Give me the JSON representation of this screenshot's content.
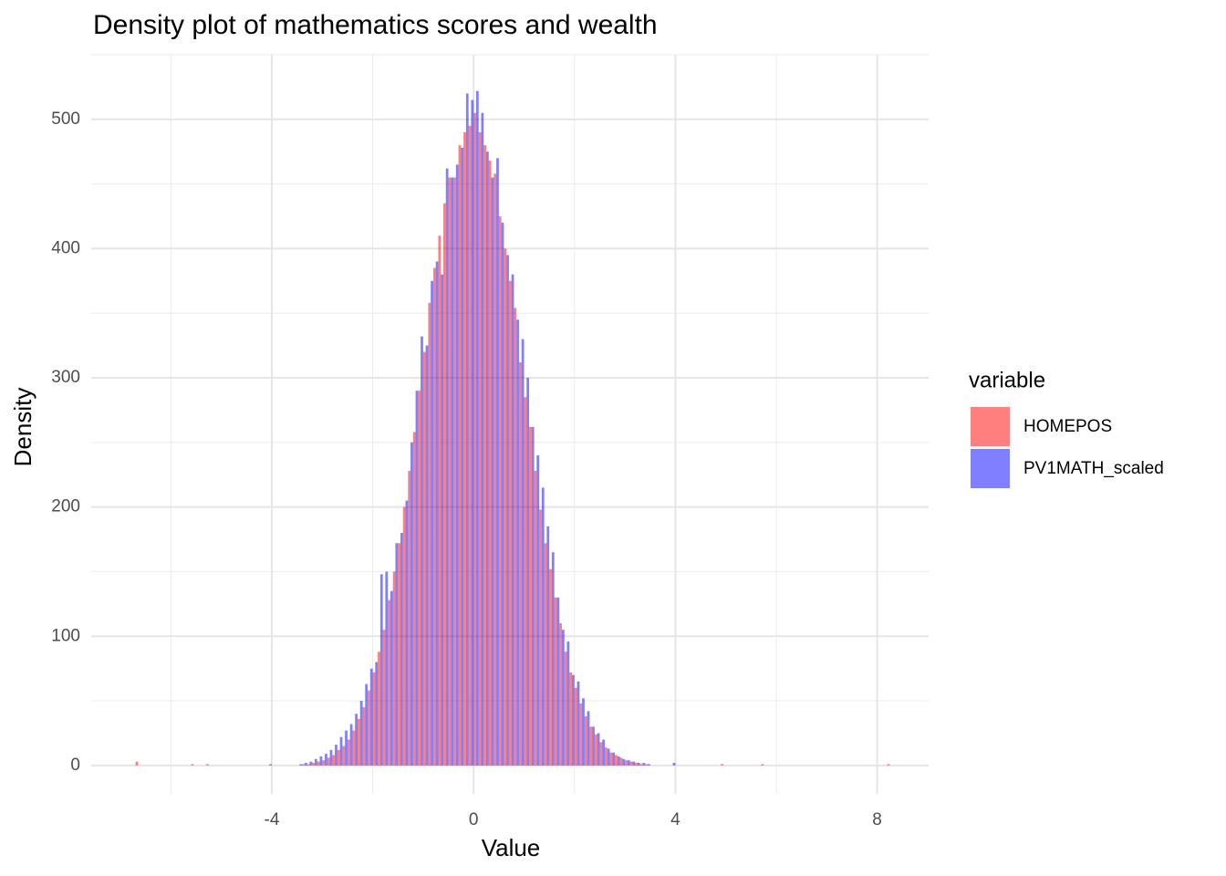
{
  "chart_data": {
    "type": "histogram",
    "title": "Density plot of mathematics scores and wealth",
    "x_label": "Value",
    "y_label": "Density",
    "legend_title": "variable",
    "legend_position": "right",
    "grid": true,
    "alpha": 0.5,
    "position": "dodge",
    "bins": [
      -7.0,
      -6.9,
      -6.8,
      -6.7,
      -6.6,
      -6.5,
      -6.4,
      -6.3,
      -6.2,
      -6.1,
      -6.0,
      -5.9,
      -5.8,
      -5.7,
      -5.6,
      -5.5,
      -5.4,
      -5.3,
      -5.2,
      -5.1,
      -5.0,
      -4.9,
      -4.8,
      -4.7,
      -4.6,
      -4.5,
      -4.4,
      -4.3,
      -4.2,
      -4.1,
      -4.0,
      -3.9,
      -3.8,
      -3.7,
      -3.6,
      -3.5,
      -3.4,
      -3.3,
      -3.2,
      -3.1,
      -3.0,
      -2.9,
      -2.8,
      -2.7,
      -2.6,
      -2.5,
      -2.4,
      -2.3,
      -2.2,
      -2.1,
      -2.0,
      -1.9,
      -1.8,
      -1.7,
      -1.6,
      -1.5,
      -1.4,
      -1.3,
      -1.2,
      -1.1,
      -1.0,
      -0.9,
      -0.8,
      -0.7,
      -0.6,
      -0.5,
      -0.4,
      -0.3,
      -0.2,
      -0.1,
      0.0,
      0.1,
      0.2,
      0.3,
      0.4,
      0.5,
      0.6,
      0.7,
      0.8,
      0.9,
      1.0,
      1.1,
      1.2,
      1.3,
      1.4,
      1.5,
      1.6,
      1.7,
      1.8,
      1.9,
      2.0,
      2.1,
      2.2,
      2.3,
      2.4,
      2.5,
      2.6,
      2.7,
      2.8,
      2.9,
      3.0,
      3.1,
      3.2,
      3.3,
      3.4,
      3.5,
      3.6,
      3.7,
      3.8,
      3.9,
      4.0,
      4.1,
      4.2,
      4.3,
      4.4,
      4.5,
      4.6,
      4.7,
      4.8,
      4.9,
      5.0,
      5.1,
      5.2,
      5.3,
      5.4,
      5.5,
      5.6,
      5.7,
      5.8,
      5.9,
      6.0,
      6.1,
      6.2,
      6.3,
      6.4,
      6.5,
      6.6,
      6.7,
      6.8,
      6.9,
      7.0,
      7.1,
      7.2,
      7.3,
      7.4,
      7.5,
      7.6,
      7.7,
      7.8,
      7.9,
      8.0,
      8.1,
      8.2,
      8.3,
      8.4,
      8.5
    ],
    "series": [
      {
        "name": "HOMEPOS",
        "color": "#ff0000",
        "values": [
          0,
          0,
          0,
          3,
          0,
          0,
          0,
          0,
          0,
          0,
          0,
          0,
          0,
          0,
          1,
          0,
          0,
          1,
          0,
          0,
          0,
          0,
          0,
          0,
          0,
          0,
          0,
          0,
          0,
          0,
          0,
          0,
          0,
          0,
          0,
          0,
          1,
          1,
          2,
          3,
          4,
          6,
          8,
          12,
          15,
          20,
          27,
          36,
          45,
          58,
          72,
          88,
          105,
          128,
          150,
          172,
          200,
          228,
          258,
          290,
          320,
          358,
          385,
          410,
          435,
          455,
          455,
          480,
          490,
          495,
          505,
          490,
          480,
          468,
          458,
          425,
          400,
          375,
          354,
          312,
          285,
          262,
          228,
          198,
          172,
          152,
          130,
          110,
          88,
          72,
          60,
          48,
          38,
          30,
          24,
          18,
          14,
          10,
          8,
          6,
          4,
          3,
          2,
          1,
          1,
          0,
          0,
          0,
          0,
          0,
          0,
          0,
          0,
          0,
          0,
          0,
          0,
          0,
          0,
          1,
          0,
          0,
          0,
          0,
          0,
          0,
          0,
          1,
          0,
          0,
          0,
          0,
          0,
          0,
          0,
          0,
          0,
          0,
          0,
          0,
          0,
          0,
          0,
          0,
          0,
          0,
          0,
          0,
          0,
          0,
          0,
          0,
          1,
          0,
          0
        ]
      },
      {
        "name": "PV1MATH_scaled",
        "color": "#0000ff",
        "values": [
          0,
          0,
          0,
          0,
          0,
          0,
          0,
          0,
          0,
          0,
          0,
          0,
          0,
          0,
          0,
          0,
          0,
          0,
          0,
          0,
          0,
          0,
          0,
          0,
          0,
          0,
          0,
          0,
          0,
          1,
          0,
          0,
          0,
          0,
          0,
          1,
          2,
          3,
          5,
          7,
          9,
          12,
          16,
          22,
          27,
          32,
          40,
          50,
          63,
          75,
          80,
          148,
          150,
          135,
          172,
          180,
          205,
          250,
          290,
          332,
          325,
          375,
          390,
          380,
          462,
          455,
          465,
          478,
          520,
          515,
          522,
          505,
          475,
          455,
          470,
          420,
          395,
          380,
          345,
          330,
          300,
          262,
          240,
          215,
          185,
          165,
          130,
          105,
          96,
          70,
          65,
          52,
          42,
          30,
          25,
          20,
          13,
          10,
          7,
          5,
          4,
          3,
          2,
          2,
          1,
          0,
          0,
          0,
          0,
          2,
          0,
          0,
          0,
          0,
          0,
          0,
          0,
          0,
          0,
          0,
          0,
          0,
          0,
          0,
          0,
          0,
          0,
          0,
          0,
          0,
          0,
          0,
          0,
          0,
          0,
          0,
          0,
          0,
          0,
          0,
          0,
          0,
          0,
          0,
          0,
          0,
          0,
          0,
          0,
          0,
          0,
          0,
          0,
          0,
          0
        ]
      }
    ],
    "xlim": [
      -7.58,
      9.02
    ],
    "xticks": [
      -4,
      0,
      4,
      8
    ],
    "ylim": [
      -22,
      550
    ],
    "yticks": [
      0,
      100,
      200,
      300,
      400,
      500
    ]
  }
}
